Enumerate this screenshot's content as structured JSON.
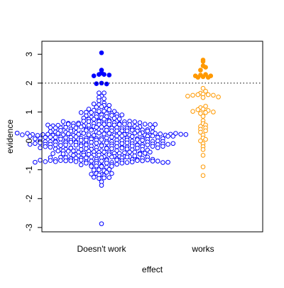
{
  "chart_data": {
    "type": "scatter",
    "subtype": "beeswarm",
    "title": "",
    "xlabel": "effect",
    "ylabel": "evidence",
    "categories": [
      "Doesn't work",
      "works"
    ],
    "ylim": [
      -3.15,
      3.45
    ],
    "yticks": [
      "-3",
      "-2",
      "-1",
      "0",
      "1",
      "2",
      "3"
    ],
    "threshold": {
      "value": 2,
      "style": "dotted"
    },
    "grid": false,
    "legend": "none",
    "colors": {
      "doesnt_work": "#0000ff",
      "works": "#ff9900"
    },
    "series": [
      {
        "category": "Doesn't work",
        "color": "#0000ff",
        "approx_n": 400,
        "filled_values": [
          3.05,
          2.45,
          2.35,
          2.3,
          2.3,
          2.28,
          2.25,
          2.0,
          1.98,
          1.97
        ],
        "max_open": 1.8,
        "min": -2.87
      },
      {
        "category": "works",
        "color": "#ff9900",
        "filled_values": [
          2.8,
          2.75,
          2.6,
          2.55,
          2.45,
          2.3,
          2.28,
          2.25,
          2.25,
          2.22,
          2.2,
          2.2
        ],
        "open_values": [
          1.82,
          1.72,
          1.65,
          1.62,
          1.6,
          1.6,
          1.58,
          1.58,
          1.55,
          1.52,
          1.5,
          1.2,
          1.15,
          1.1,
          1.08,
          1.05,
          1.02,
          1.0,
          0.98,
          0.95,
          0.85,
          0.7,
          0.6,
          0.55,
          0.5,
          0.45,
          0.4,
          0.35,
          0.3,
          0.2,
          0.1,
          0.05,
          0.0,
          -0.1,
          -0.2,
          -0.3,
          -0.5,
          -0.9,
          -1.2
        ],
        "min": -1.2
      }
    ]
  }
}
